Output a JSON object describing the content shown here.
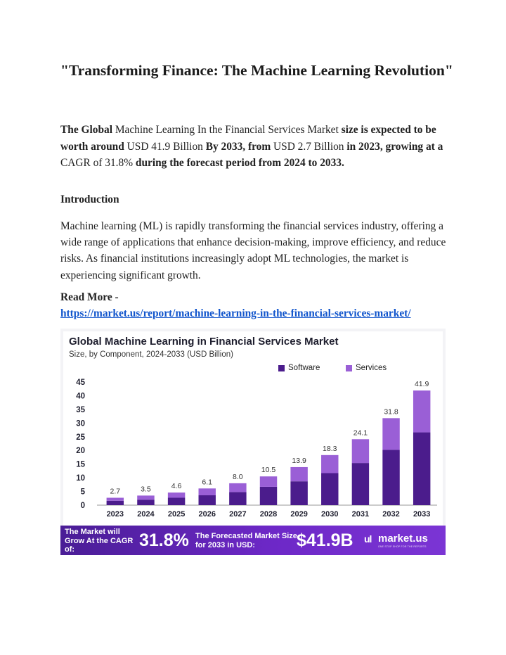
{
  "document": {
    "title": "\"Transforming Finance: The Machine Learning Revolution\"",
    "summary": [
      {
        "text": "The Global ",
        "bold": true
      },
      {
        "text": "Machine Learning In the Financial Services Market ",
        "bold": false
      },
      {
        "text": "size is expected to be worth around ",
        "bold": true
      },
      {
        "text": "USD 41.9 Billion ",
        "bold": false
      },
      {
        "text": "By 2033, from ",
        "bold": true
      },
      {
        "text": "USD 2.7 Billion ",
        "bold": false
      },
      {
        "text": "in 2023, growing at a ",
        "bold": true
      },
      {
        "text": "CAGR of 31.8% ",
        "bold": false
      },
      {
        "text": "during the forecast period from 2024 to 2033.",
        "bold": true
      }
    ],
    "intro_heading": "Introduction",
    "intro_body": "Machine learning (ML) is rapidly transforming the financial services industry, offering a wide range of applications that enhance decision-making, improve efficiency, and reduce risks. As financial institutions increasingly adopt ML technologies, the market is experiencing significant growth.",
    "read_more_label": "Read More -",
    "read_more_link": "https://market.us/report/machine-learning-in-the-financial-services-market/"
  },
  "chart_data": {
    "type": "bar",
    "stacked": true,
    "title": "Global Machine Learning in Financial Services Market",
    "subtitle": "Size, by Component, 2024-2033 (USD Billion)",
    "categories": [
      "2023",
      "2024",
      "2025",
      "2026",
      "2027",
      "2028",
      "2029",
      "2030",
      "2031",
      "2032",
      "2033"
    ],
    "series": [
      {
        "name": "Software",
        "color": "#4b1c8c",
        "values": [
          1.6,
          2.0,
          2.7,
          3.6,
          4.8,
          6.7,
          8.7,
          11.7,
          15.4,
          20.2,
          26.6
        ]
      },
      {
        "name": "Services",
        "color": "#9a5fd6",
        "values": [
          1.1,
          1.5,
          1.9,
          2.5,
          3.2,
          3.8,
          5.2,
          6.6,
          8.7,
          11.6,
          15.3
        ]
      }
    ],
    "totals": [
      2.7,
      3.5,
      4.6,
      6.1,
      8.0,
      10.5,
      13.9,
      18.3,
      24.1,
      31.8,
      41.9
    ],
    "total_labels": [
      "2.7",
      "3.5",
      "4.6",
      "6.1",
      "8.0",
      "10.5",
      "13.9",
      "18.3",
      "24.1",
      "31.8",
      "41.9"
    ],
    "y_ticks": [
      0,
      5,
      10,
      15,
      20,
      25,
      30,
      35,
      40,
      45
    ],
    "ylim": [
      0,
      45
    ],
    "legend_position": "top-right",
    "grid": false
  },
  "banner": {
    "growth_text": "The Market will Grow At the CAGR of:",
    "cagr": "31.8%",
    "forecast_text": "The Forecasted Market Size for 2033 in USD:",
    "forecast_value": "$41.9B",
    "logo_icon": "market-us-logo-icon",
    "logo_text": "market.us",
    "logo_tagline": "ONE STOP SHOP FOR THE REPORTS"
  }
}
